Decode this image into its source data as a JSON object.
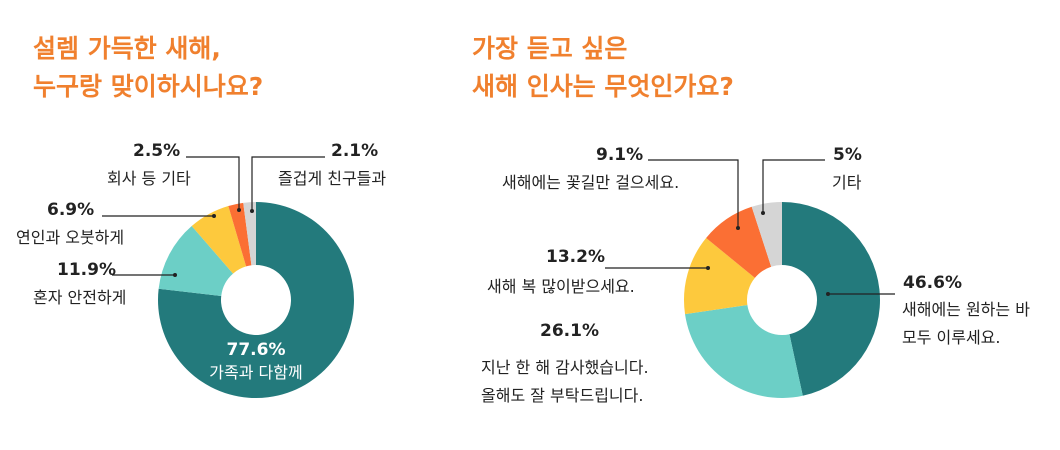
{
  "chart_data": [
    {
      "type": "pie",
      "title": [
        "설렘 가득한 새해,",
        "누구랑 맞이하시나요?"
      ],
      "slices": [
        {
          "label": "가족과 다함께",
          "value": 77.6,
          "value_label": "77.6%",
          "color": "#237a7c"
        },
        {
          "label": "혼자 안전하게",
          "value": 11.9,
          "value_label": "11.9%",
          "color": "#6ccfc6"
        },
        {
          "label": "연인과 오붓하게",
          "value": 6.9,
          "value_label": "6.9%",
          "color": "#fdc93d"
        },
        {
          "label": "회사 등 기타",
          "value": 2.5,
          "value_label": "2.5%",
          "color": "#fb6f34"
        },
        {
          "label": "즐겁게 친구들과",
          "value": 2.1,
          "value_label": "2.1%",
          "color": "#d5d5d5"
        }
      ]
    },
    {
      "type": "pie",
      "title": [
        "가장 듣고 싶은",
        "새해 인사는 무엇인가요?"
      ],
      "slices": [
        {
          "label": [
            "새해에는 원하는 바",
            "모두 이루세요."
          ],
          "value": 46.6,
          "value_label": "46.6%",
          "color": "#237a7c"
        },
        {
          "label": [
            "지난 한 해 감사했습니다.",
            "올해도 잘 부탁드립니다."
          ],
          "value": 26.1,
          "value_label": "26.1%",
          "color": "#6ccfc6"
        },
        {
          "label": [
            "새해 복 많이받으세요."
          ],
          "value": 13.2,
          "value_label": "13.2%",
          "color": "#fdc93d"
        },
        {
          "label": [
            "새해에는 꽃길만 걸으세요."
          ],
          "value": 9.1,
          "value_label": "9.1%",
          "color": "#fb6f34"
        },
        {
          "label": [
            "기타"
          ],
          "value": 5,
          "value_label": "5%",
          "color": "#d5d5d5"
        }
      ]
    }
  ]
}
